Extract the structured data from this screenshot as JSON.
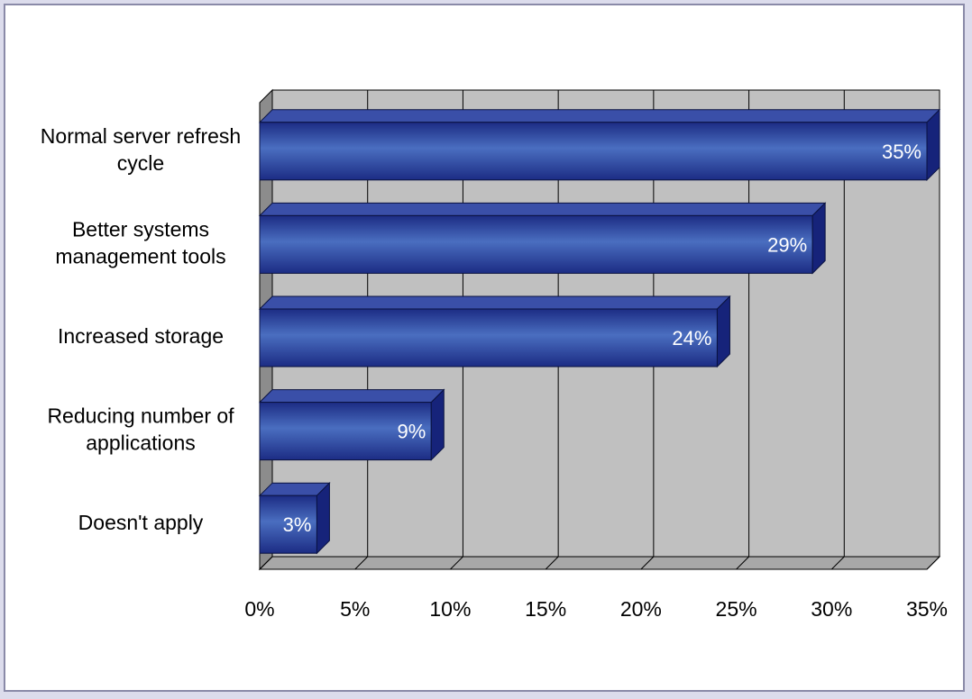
{
  "chart_data": {
    "type": "bar",
    "orientation": "horizontal",
    "style": "3d",
    "categories": [
      [
        "Normal server refresh",
        "cycle"
      ],
      [
        "Better systems",
        "management tools"
      ],
      [
        "Increased storage"
      ],
      [
        "Reducing number of",
        "applications"
      ],
      [
        "Doesn't apply"
      ]
    ],
    "values": [
      35,
      29,
      24,
      9,
      3
    ],
    "value_labels": [
      "35%",
      "29%",
      "24%",
      "9%",
      "3%"
    ],
    "x_ticks": [
      "0%",
      "5%",
      "10%",
      "15%",
      "20%",
      "25%",
      "30%",
      "35%"
    ],
    "xlim": [
      0,
      35
    ],
    "grid": true,
    "colors": {
      "bar_front_light": "#4a6ec0",
      "bar_front_dark": "#1c2c84",
      "bar_top": "#3a4fa8",
      "bar_side": "#16237a",
      "plot_back": "#c0c0c0",
      "plot_left_wall": "#8c8c8c",
      "value_label": "#ffffff"
    }
  }
}
